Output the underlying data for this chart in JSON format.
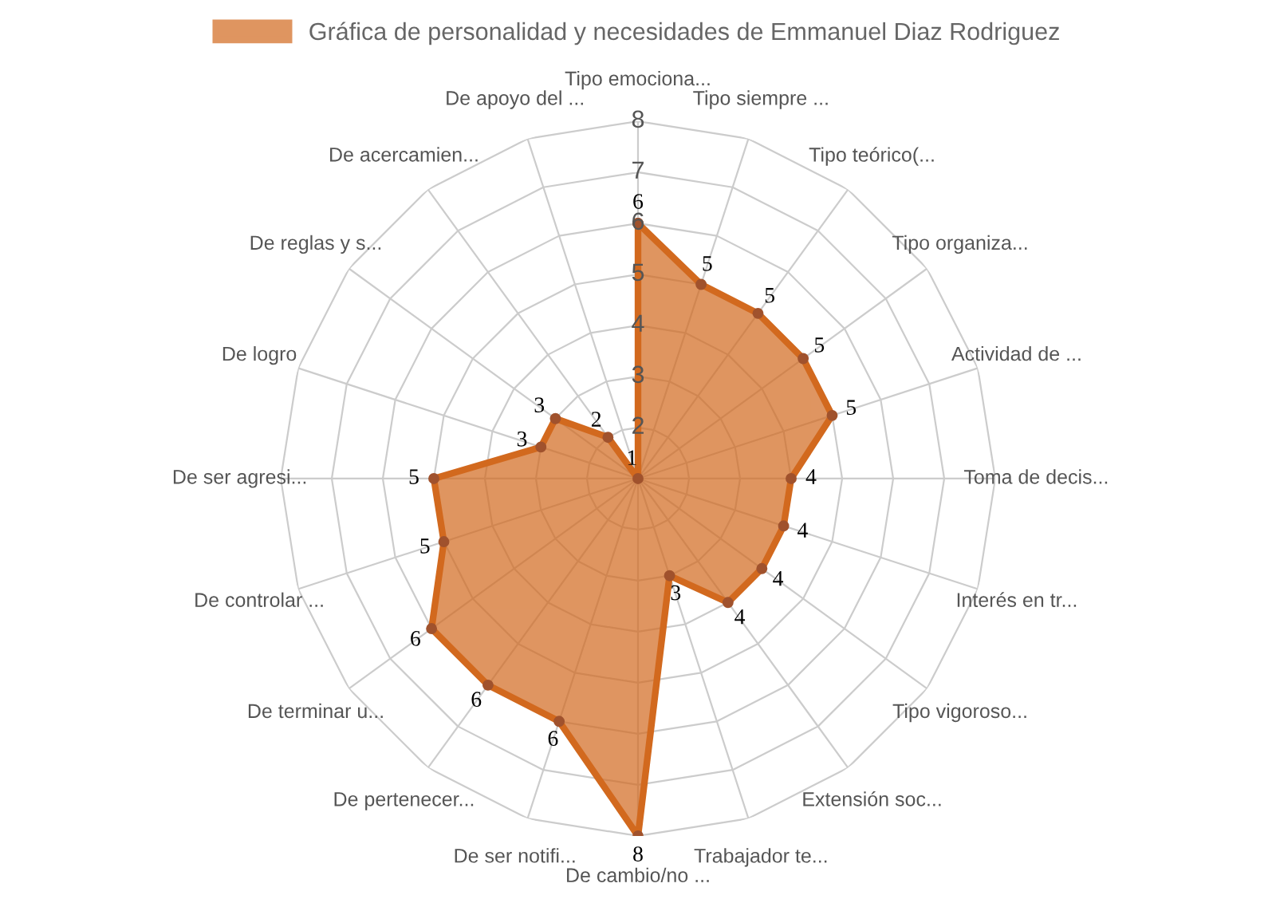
{
  "chart_data": {
    "type": "radar",
    "categories": [
      "Tipo emociona...",
      "Tipo siempre ...",
      "Tipo teórico(...",
      "Tipo organiza...",
      "Actividad de ...",
      "Toma de decis...",
      "Interés en tr...",
      "Tipo vigoroso...",
      "Extensión soc...",
      "Trabajador te...",
      "De cambio/no ...",
      "De ser notifi...",
      "De pertenecer...",
      "De terminar u...",
      "De controlar ...",
      "De ser agresi...",
      "De logro",
      "De reglas y s...",
      "De acercamien...",
      "De apoyo del ..."
    ],
    "series": [
      {
        "name": "Gráfica de personalidad y necesidades de Emmanuel Diaz Rodriguez",
        "color": "#d2691e",
        "values": [
          6,
          5,
          5,
          5,
          5,
          4,
          4,
          4,
          4,
          3,
          8,
          6,
          6,
          6,
          5,
          5,
          3,
          3,
          2,
          1
        ]
      }
    ],
    "ylim": [
      1,
      8
    ],
    "yticks": [
      2,
      3,
      4,
      5,
      6,
      7,
      8
    ],
    "grid": true,
    "legend": "top",
    "data_labels": true,
    "marker": "circle"
  }
}
